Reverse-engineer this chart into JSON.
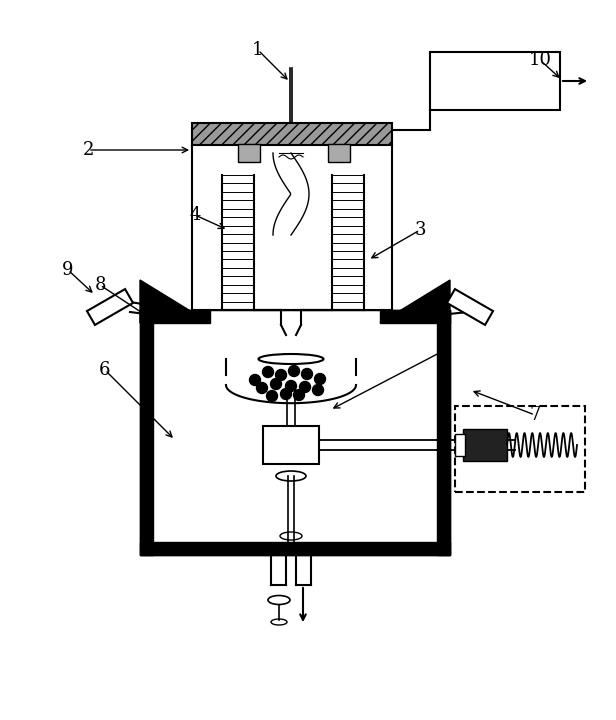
{
  "background": "#ffffff",
  "figsize": [
    6.16,
    7.2
  ],
  "dpi": 100,
  "lw": 1.5
}
